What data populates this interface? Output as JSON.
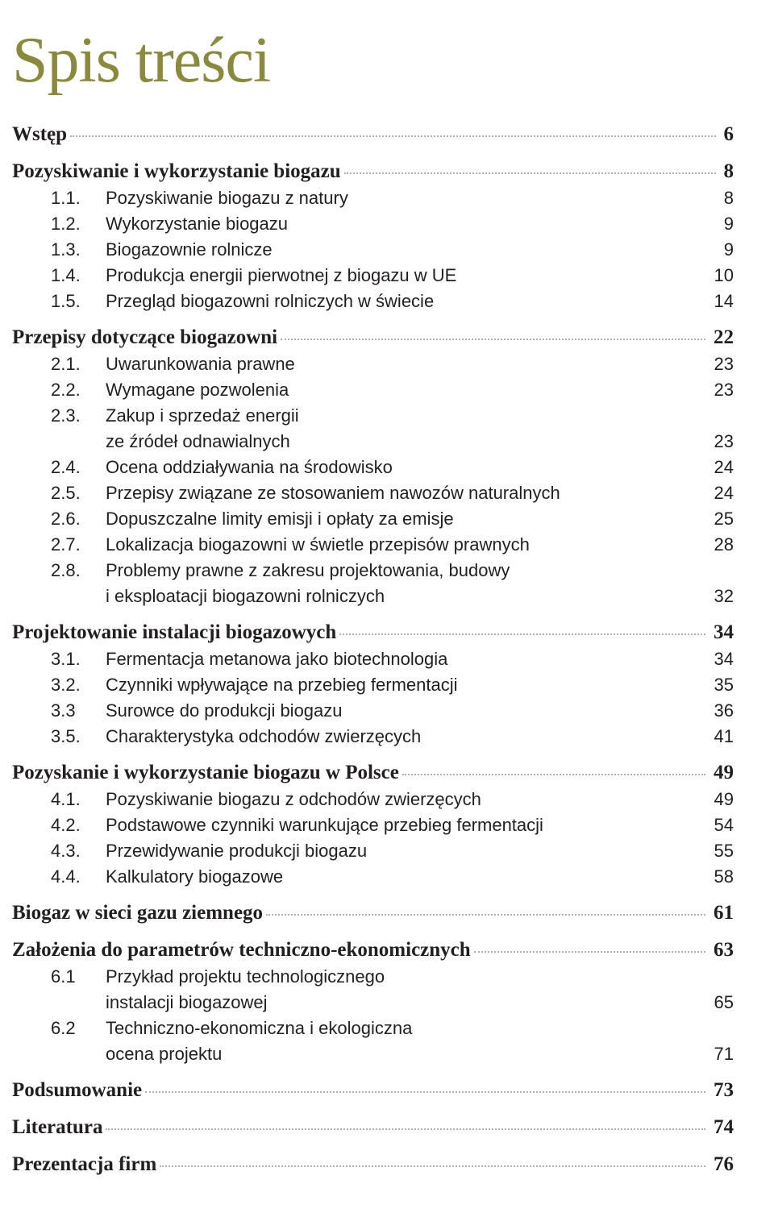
{
  "title": "Spis treści",
  "title_fontsize": 80,
  "title_color": "#8a8a3c",
  "text_color": "#231f20",
  "section_fontsize": 25,
  "item_fontsize": 22,
  "background_color": "#ffffff",
  "leader_color": "#b0b0b0",
  "sections": [
    {
      "label": "Wstęp",
      "page": "6",
      "items": []
    },
    {
      "label": "Pozyskiwanie i wykorzystanie biogazu",
      "page": "8",
      "items": [
        {
          "num": "1.1.",
          "label": "Pozyskiwanie biogazu z natury",
          "page": "8"
        },
        {
          "num": "1.2.",
          "label": "Wykorzystanie biogazu",
          "page": "9"
        },
        {
          "num": "1.3.",
          "label": "Biogazownie rolnicze",
          "page": "9"
        },
        {
          "num": "1.4.",
          "label": "Produkcja energii pierwotnej z biogazu w UE",
          "page": "10"
        },
        {
          "num": "1.5.",
          "label": "Przegląd biogazowni rolniczych w świecie",
          "page": "14"
        }
      ]
    },
    {
      "label": "Przepisy dotyczące biogazowni",
      "page": "22",
      "items": [
        {
          "num": "2.1.",
          "label": "Uwarunkowania prawne",
          "page": "23"
        },
        {
          "num": "2.2.",
          "label": "Wymagane pozwolenia",
          "page": "23"
        },
        {
          "num": "2.3.",
          "label": "Zakup i sprzedaż energii",
          "cont": "ze źródeł odnawialnych",
          "page": "23"
        },
        {
          "num": "2.4.",
          "label": "Ocena oddziaływania na środowisko",
          "page": "24"
        },
        {
          "num": "2.5.",
          "label": "Przepisy związane ze stosowaniem nawozów naturalnych",
          "page": "24"
        },
        {
          "num": "2.6.",
          "label": "Dopuszczalne limity emisji i opłaty za emisje",
          "page": "25"
        },
        {
          "num": "2.7.",
          "label": "Lokalizacja biogazowni w świetle przepisów prawnych",
          "page": "28"
        },
        {
          "num": "2.8.",
          "label": "Problemy prawne z zakresu projektowania, budowy",
          "cont": "i eksploatacji biogazowni rolniczych",
          "page": "32"
        }
      ]
    },
    {
      "label": "Projektowanie instalacji biogazowych",
      "page": "34",
      "items": [
        {
          "num": "3.1.",
          "label": "Fermentacja metanowa jako biotechnologia",
          "page": "34"
        },
        {
          "num": "3.2.",
          "label": "Czynniki wpływające na przebieg fermentacji",
          "page": "35"
        },
        {
          "num": "3.3",
          "label": "Surowce do produkcji biogazu",
          "page": "36"
        },
        {
          "num": "3.5.",
          "label": "Charakterystyka odchodów zwierzęcych",
          "page": "41"
        }
      ]
    },
    {
      "label": "Pozyskanie i wykorzystanie biogazu w Polsce",
      "page": "49",
      "items": [
        {
          "num": "4.1.",
          "label": "Pozyskiwanie biogazu z odchodów zwierzęcych",
          "page": "49"
        },
        {
          "num": "4.2.",
          "label": "Podstawowe czynniki warunkujące przebieg fermentacji",
          "page": "54"
        },
        {
          "num": "4.3.",
          "label": "Przewidywanie produkcji biogazu",
          "page": "55"
        },
        {
          "num": "4.4.",
          "label": "Kalkulatory biogazowe",
          "page": "58"
        }
      ]
    },
    {
      "label": "Biogaz w sieci gazu ziemnego",
      "page": "61",
      "items": []
    },
    {
      "label": "Założenia do parametrów techniczno-ekonomicznych",
      "page": "63",
      "items": [
        {
          "num": "6.1",
          "label": "Przykład projektu technologicznego",
          "cont": "instalacji biogazowej",
          "page": "65"
        },
        {
          "num": "6.2",
          "label": "Techniczno-ekonomiczna i ekologiczna",
          "cont": "ocena projektu",
          "page": "71"
        }
      ]
    },
    {
      "label": "Podsumowanie",
      "page": "73",
      "items": []
    },
    {
      "label": "Literatura",
      "page": "74",
      "items": []
    },
    {
      "label": "Prezentacja firm",
      "page": "76",
      "items": []
    }
  ]
}
